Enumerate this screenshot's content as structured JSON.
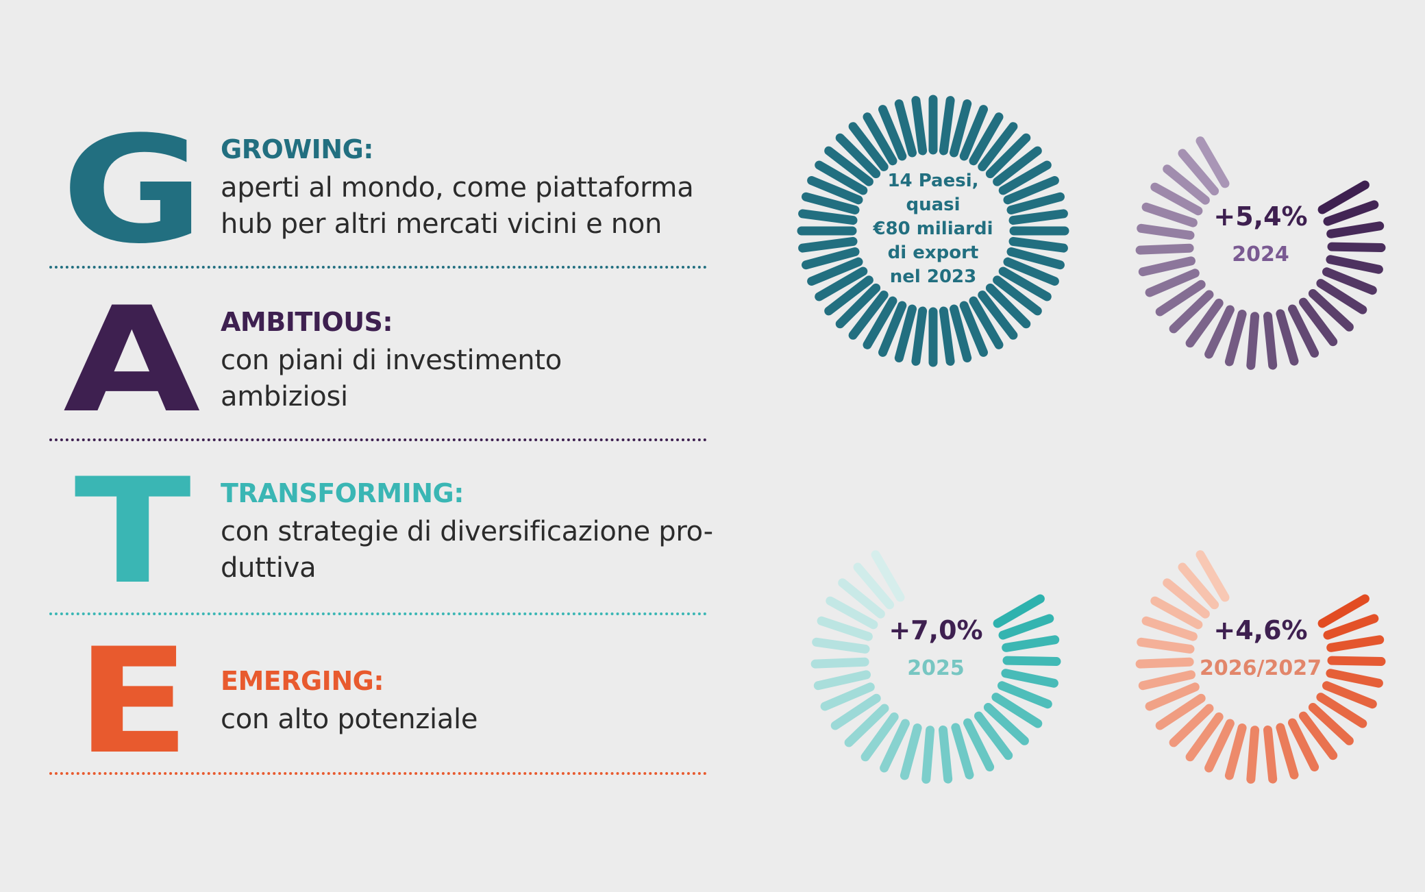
{
  "colors": {
    "background": "#ececec",
    "growing": "#226f80",
    "ambitious": "#3e2050",
    "transforming": "#3ab6b4",
    "emerging": "#e85a2e",
    "gauge_2024_text": "#7a5a92",
    "gauge_2025_text": "#77c6c2",
    "gauge_2026_text": "#e2866a"
  },
  "gate": [
    {
      "letter": "G",
      "heading": "GROWING:",
      "line1": "aperti al mondo, come piattaforma",
      "line2": "hub per altri mercati vicini e non"
    },
    {
      "letter": "A",
      "heading": "AMBITIOUS:",
      "line1": "con piani di investimento",
      "line2": "ambiziosi"
    },
    {
      "letter": "T",
      "heading": "TRANSFORMING:",
      "line1": "con strategie di diversificazione pro-",
      "line2": "duttiva"
    },
    {
      "letter": "E",
      "heading": "EMERGING:",
      "line1": "con alto potenziale",
      "line2": ""
    }
  ],
  "gauges": {
    "export": {
      "lines": [
        "14 Paesi,",
        "quasi",
        "€80 miliardi",
        "di export",
        "nel 2023"
      ],
      "fraction": 1.0
    },
    "g2024": {
      "value": "+5,4%",
      "year": "2024",
      "fraction": 0.75
    },
    "g2025": {
      "value": "+7,0%",
      "year": "2025",
      "fraction": 0.75
    },
    "g2026": {
      "value": "+4,6%",
      "year": "2026/2027",
      "fraction": 0.75
    }
  }
}
